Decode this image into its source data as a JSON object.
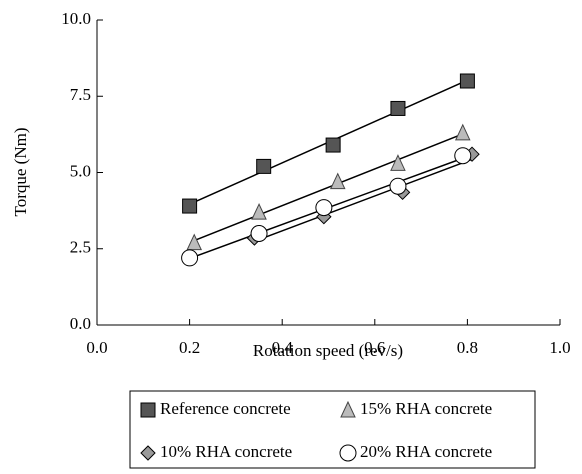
{
  "chart_data": {
    "type": "scatter",
    "xlabel": "Rotation speed (rev/s)",
    "ylabel": "Torque (Nm)",
    "xlim": [
      0,
      1
    ],
    "ylim": [
      0,
      10
    ],
    "xticks": [
      {
        "value": 0,
        "label": "0.0"
      },
      0.2,
      0.4,
      0.6,
      0.8,
      {
        "value": 1,
        "label": "1.0"
      }
    ],
    "yticks": [
      {
        "value": 0,
        "label": "0.0"
      },
      2.5,
      {
        "value": 5,
        "label": "5.0"
      },
      7.5,
      {
        "value": 10,
        "label": "10.0"
      }
    ],
    "trendline": true,
    "series": [
      {
        "name": "Reference concrete",
        "marker": "square",
        "color": "#555555",
        "x": [
          0.2,
          0.36,
          0.51,
          0.65,
          0.8
        ],
        "values": [
          3.9,
          5.2,
          5.9,
          7.1,
          8.0
        ]
      },
      {
        "name": "15% RHA concrete",
        "marker": "triangle",
        "color": "#bbbbbb",
        "x": [
          0.21,
          0.35,
          0.52,
          0.65,
          0.79
        ],
        "values": [
          2.7,
          3.7,
          4.7,
          5.3,
          6.3
        ]
      },
      {
        "name": "10% RHA concrete",
        "marker": "diamond",
        "color": "#999999",
        "x": [
          0.34,
          0.49,
          0.66,
          0.81
        ],
        "values": [
          2.85,
          3.55,
          4.35,
          5.6
        ]
      },
      {
        "name": "20% RHA concrete",
        "marker": "circle",
        "color": "#ffffff",
        "x": [
          0.2,
          0.35,
          0.49,
          0.65,
          0.79
        ],
        "values": [
          2.2,
          3.0,
          3.85,
          4.55,
          5.55
        ]
      }
    ]
  }
}
